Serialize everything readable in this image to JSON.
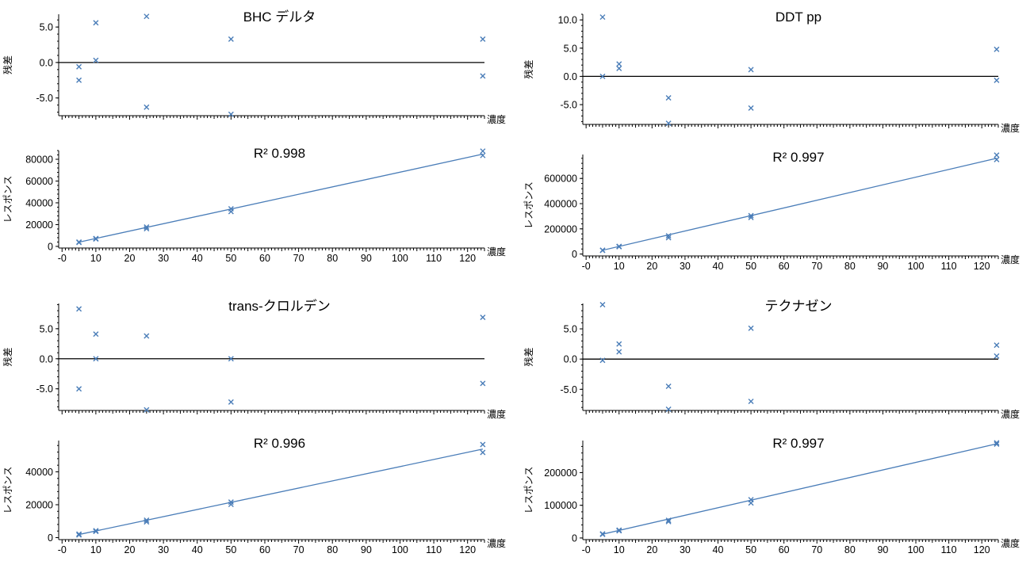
{
  "colors": {
    "series": "#4a7db8",
    "zero_line": "#000000",
    "axis": "#000000",
    "background": "#ffffff"
  },
  "chart_data": [
    {
      "type": "scatter",
      "role": "residual",
      "title": "BHC デルタ",
      "ylabel": "残差",
      "xlabel": "濃度",
      "xlim": [
        -1,
        125
      ],
      "ylim": [
        -7.5,
        6.8
      ],
      "y_ticks": [
        5.0,
        0.0,
        -5.0
      ],
      "y_tick_labels": [
        "5.0",
        "0.0",
        "-5.0"
      ],
      "zero_line": true,
      "x_tick_labels_shown": false,
      "points": [
        [
          5,
          -0.6
        ],
        [
          5,
          -2.5
        ],
        [
          10,
          5.6
        ],
        [
          10,
          0.3
        ],
        [
          25,
          6.5
        ],
        [
          25,
          -6.3
        ],
        [
          50,
          3.3
        ],
        [
          50,
          -7.3
        ],
        [
          124.5,
          3.3
        ],
        [
          124.5,
          -1.9
        ]
      ]
    },
    {
      "type": "scatter",
      "role": "calibration",
      "title": "R² 0.998",
      "ylabel": "レスポンス",
      "xlabel": "濃度",
      "xlim": [
        -1,
        125
      ],
      "ylim": [
        -1500,
        88000
      ],
      "y_ticks": [
        0,
        20000,
        40000,
        60000,
        80000
      ],
      "y_tick_labels": [
        "0",
        "20000",
        "40000",
        "60000",
        "80000"
      ],
      "x_ticks": [
        0,
        10,
        20,
        30,
        40,
        50,
        60,
        70,
        80,
        90,
        100,
        110,
        120
      ],
      "x_tick_labels": [
        "-0",
        "10",
        "20",
        "30",
        "40",
        "50",
        "60",
        "70",
        "80",
        "90",
        "100",
        "110",
        "120"
      ],
      "fit_line": [
        [
          5,
          3900
        ],
        [
          124.5,
          84700
        ]
      ],
      "points": [
        [
          5,
          3600
        ],
        [
          5,
          4000
        ],
        [
          10,
          6800
        ],
        [
          10,
          7200
        ],
        [
          25,
          16200
        ],
        [
          25,
          17800
        ],
        [
          50,
          32000
        ],
        [
          50,
          34500
        ],
        [
          124.5,
          83500
        ],
        [
          124.5,
          87500
        ]
      ]
    },
    {
      "type": "scatter",
      "role": "residual",
      "title": "DDT pp",
      "ylabel": "残差",
      "xlabel": "濃度",
      "xlim": [
        -1,
        125
      ],
      "ylim": [
        -8.5,
        11.0
      ],
      "y_ticks": [
        10.0,
        5.0,
        0.0,
        -5.0
      ],
      "y_tick_labels": [
        "10.0",
        "5.0",
        "0.0",
        "-5.0"
      ],
      "zero_line": true,
      "x_tick_labels_shown": false,
      "points": [
        [
          5,
          10.5
        ],
        [
          5,
          0.0
        ],
        [
          10,
          2.2
        ],
        [
          10,
          1.4
        ],
        [
          25,
          -3.8
        ],
        [
          25,
          -8.3
        ],
        [
          50,
          1.2
        ],
        [
          50,
          -5.6
        ],
        [
          124.5,
          4.8
        ],
        [
          124.5,
          -0.7
        ]
      ]
    },
    {
      "type": "scatter",
      "role": "calibration",
      "title": "R² 0.997",
      "ylabel": "レスポンス",
      "xlabel": "濃度",
      "xlim": [
        -1,
        125
      ],
      "ylim": [
        -15000,
        790000
      ],
      "y_ticks": [
        0,
        200000,
        400000,
        600000
      ],
      "y_tick_labels": [
        "0",
        "200000",
        "400000",
        "600000"
      ],
      "x_ticks": [
        0,
        10,
        20,
        30,
        40,
        50,
        60,
        70,
        80,
        90,
        100,
        110,
        120
      ],
      "x_tick_labels": [
        "-0",
        "10",
        "20",
        "30",
        "40",
        "50",
        "60",
        "70",
        "80",
        "90",
        "100",
        "110",
        "120"
      ],
      "fit_line": [
        [
          5,
          30000
        ],
        [
          124.5,
          760000
        ]
      ],
      "points": [
        [
          5,
          29000
        ],
        [
          5,
          31000
        ],
        [
          10,
          58000
        ],
        [
          10,
          61000
        ],
        [
          25,
          130000
        ],
        [
          25,
          145000
        ],
        [
          50,
          290000
        ],
        [
          50,
          305000
        ],
        [
          124.5,
          750000
        ],
        [
          124.5,
          785000
        ]
      ]
    },
    {
      "type": "scatter",
      "role": "residual",
      "title": "trans-クロルデン",
      "ylabel": "残差",
      "xlabel": "濃度",
      "xlim": [
        -1,
        125
      ],
      "ylim": [
        -8.6,
        9.2
      ],
      "y_ticks": [
        5.0,
        0.0,
        -5.0
      ],
      "y_tick_labels": [
        "5.0",
        "0.0",
        "-5.0"
      ],
      "zero_line": true,
      "x_tick_labels_shown": false,
      "points": [
        [
          5,
          8.3
        ],
        [
          5,
          -5.0
        ],
        [
          10,
          4.1
        ],
        [
          10,
          0.0
        ],
        [
          25,
          3.8
        ],
        [
          25,
          -8.5
        ],
        [
          50,
          0.0
        ],
        [
          50,
          -7.2
        ],
        [
          124.5,
          6.9
        ],
        [
          124.5,
          -4.1
        ]
      ]
    },
    {
      "type": "scatter",
      "role": "calibration",
      "title": "R² 0.996",
      "ylabel": "レスポンス",
      "xlabel": "濃度",
      "xlim": [
        -1,
        125
      ],
      "ylim": [
        -1200,
        59000
      ],
      "y_ticks": [
        0,
        20000,
        40000
      ],
      "y_tick_labels": [
        "0",
        "20000",
        "40000"
      ],
      "x_ticks": [
        0,
        10,
        20,
        30,
        40,
        50,
        60,
        70,
        80,
        90,
        100,
        110,
        120
      ],
      "x_tick_labels": [
        "-0",
        "10",
        "20",
        "30",
        "40",
        "50",
        "60",
        "70",
        "80",
        "90",
        "100",
        "110",
        "120"
      ],
      "fit_line": [
        [
          5,
          1900
        ],
        [
          124.5,
          53800
        ]
      ],
      "points": [
        [
          5,
          1600
        ],
        [
          5,
          2200
        ],
        [
          10,
          3800
        ],
        [
          10,
          4200
        ],
        [
          25,
          9600
        ],
        [
          25,
          10600
        ],
        [
          50,
          20200
        ],
        [
          50,
          21600
        ],
        [
          124.5,
          51800
        ],
        [
          124.5,
          56600
        ]
      ]
    },
    {
      "type": "scatter",
      "role": "residual",
      "title": "テクナゼン",
      "ylabel": "残差",
      "xlabel": "濃度",
      "xlim": [
        -1,
        125
      ],
      "ylim": [
        -8.5,
        9.2
      ],
      "y_ticks": [
        5.0,
        0.0,
        -5.0
      ],
      "y_tick_labels": [
        "5.0",
        "0.0",
        "-5.0"
      ],
      "zero_line": true,
      "x_tick_labels_shown": false,
      "points": [
        [
          5,
          9.0
        ],
        [
          5,
          -0.2
        ],
        [
          10,
          2.5
        ],
        [
          10,
          1.2
        ],
        [
          25,
          -4.5
        ],
        [
          25,
          -8.3
        ],
        [
          50,
          5.1
        ],
        [
          50,
          -7.0
        ],
        [
          124.5,
          2.3
        ],
        [
          124.5,
          0.5
        ]
      ]
    },
    {
      "type": "scatter",
      "role": "calibration",
      "title": "R² 0.997",
      "ylabel": "レスポンス",
      "xlabel": "濃度",
      "xlim": [
        -1,
        125
      ],
      "ylim": [
        -5000,
        298000
      ],
      "y_ticks": [
        0,
        100000,
        200000
      ],
      "y_tick_labels": [
        "0",
        "100000",
        "200000"
      ],
      "x_ticks": [
        0,
        10,
        20,
        30,
        40,
        50,
        60,
        70,
        80,
        90,
        100,
        110,
        120
      ],
      "x_tick_labels": [
        "-0",
        "10",
        "20",
        "30",
        "40",
        "50",
        "60",
        "70",
        "80",
        "90",
        "100",
        "110",
        "120"
      ],
      "fit_line": [
        [
          5,
          11500
        ],
        [
          124.5,
          288000
        ]
      ],
      "points": [
        [
          5,
          11000
        ],
        [
          5,
          12500
        ],
        [
          10,
          22000
        ],
        [
          10,
          24000
        ],
        [
          25,
          50000
        ],
        [
          25,
          54000
        ],
        [
          50,
          107000
        ],
        [
          50,
          117000
        ],
        [
          124.5,
          287000
        ],
        [
          124.5,
          291000
        ]
      ]
    }
  ]
}
